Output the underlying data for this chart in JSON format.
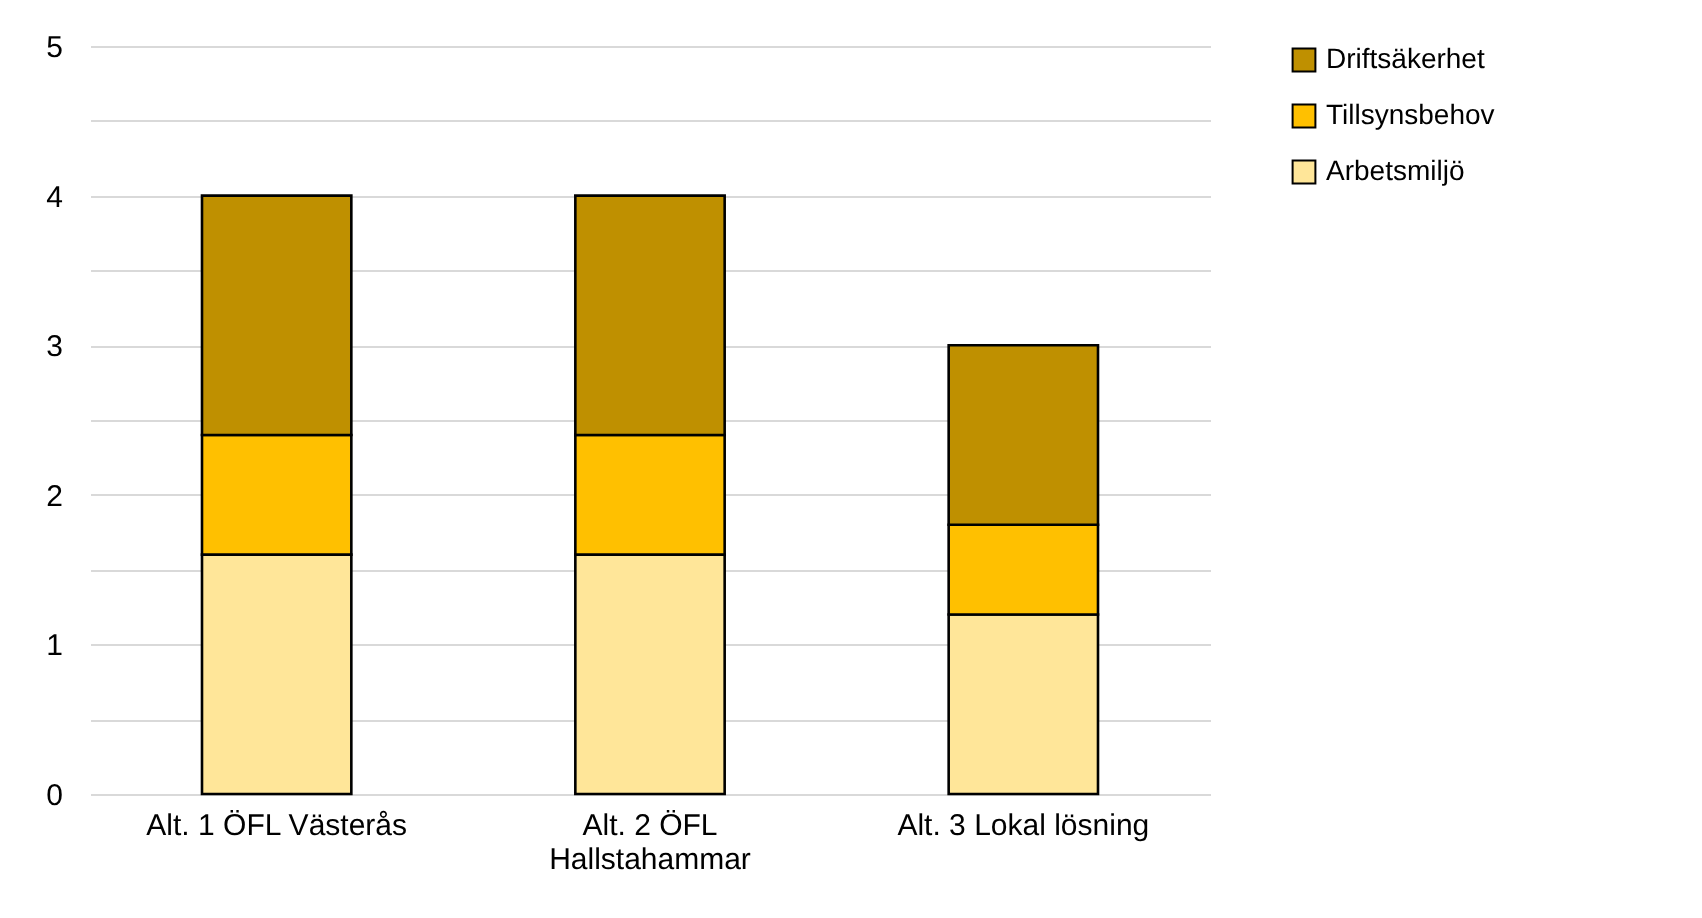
{
  "chart_data": {
    "type": "bar",
    "stacked": true,
    "categories": [
      "Alt. 1 ÖFL Västerås",
      "Alt. 2 ÖFL Hallstahammar",
      "Alt. 3 Lokal lösning"
    ],
    "series": [
      {
        "name": "Arbetsmiljö",
        "color": "#ffe699",
        "values": [
          1.6,
          1.6,
          1.2
        ]
      },
      {
        "name": "Tillsynsbehov",
        "color": "#ffc000",
        "values": [
          0.8,
          0.8,
          0.6
        ]
      },
      {
        "name": "Driftsäkerhet",
        "color": "#bf9000",
        "values": [
          1.6,
          1.6,
          1.2
        ]
      }
    ],
    "ylim": [
      0,
      5
    ],
    "yticks": [
      0,
      {
        "value": 0.5,
        "label": null
      },
      1,
      {
        "value": 1.5,
        "label": null
      },
      2,
      {
        "value": 2.5,
        "label": null
      },
      3,
      {
        "value": 3.5,
        "label": null
      },
      4,
      {
        "value": 4.5,
        "label": null
      },
      5
    ],
    "grid": true,
    "legend": "right"
  }
}
